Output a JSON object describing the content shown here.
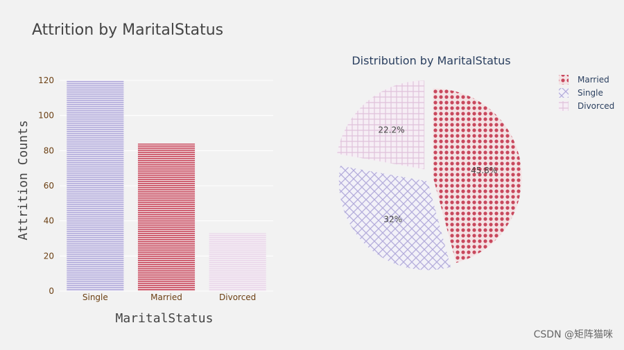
{
  "chart_data": [
    {
      "type": "bar",
      "title": "Attrition by MaritalStatus",
      "xlabel": "MaritalStatus",
      "ylabel": "Attrition Counts",
      "categories": [
        "Single",
        "Married",
        "Divorced"
      ],
      "values": [
        120,
        84,
        33
      ],
      "ylim": [
        0,
        120
      ],
      "yticks": [
        0,
        20,
        40,
        60,
        80,
        100,
        120
      ],
      "colors": [
        "#b3acdb",
        "#c8485d",
        "#ead8ea"
      ],
      "grid": true
    },
    {
      "type": "pie",
      "title": "Distribution by MaritalStatus",
      "labels": [
        "Married",
        "Single",
        "Divorced"
      ],
      "values": [
        45.8,
        32,
        22.2
      ],
      "slice_labels": [
        "45.8%",
        "32%",
        "22.2%"
      ],
      "colors": [
        "#c8485d",
        "#b3acdb",
        "#e6cfe3"
      ],
      "patterns": [
        "dots",
        "cross-diagonal",
        "grid"
      ],
      "legend_position": "top-right"
    }
  ],
  "watermark": "CSDN @矩阵猫咪"
}
